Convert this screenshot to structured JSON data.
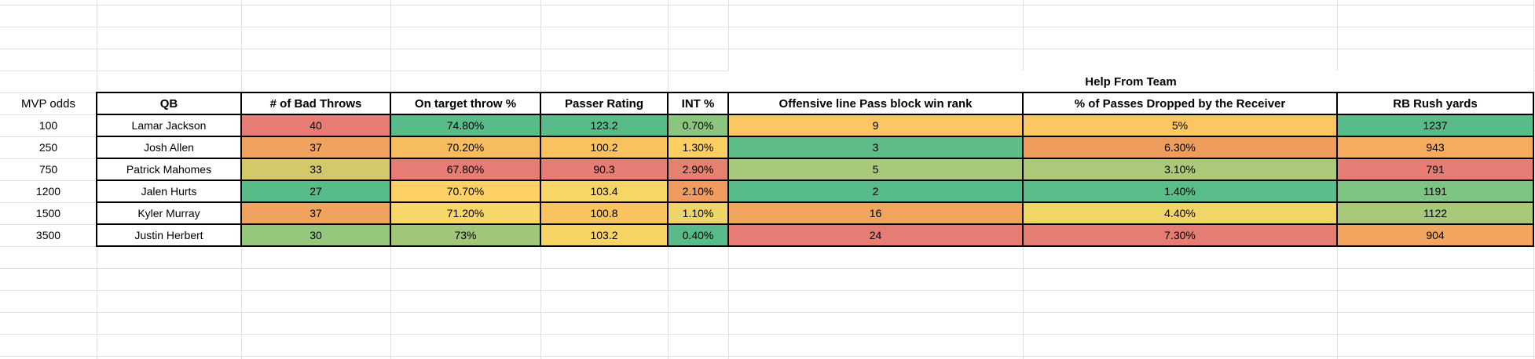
{
  "sheet": {
    "gridline_color": "#e0e0e0",
    "table_border_color": "#000000",
    "help_header": "Help From Team",
    "odds_column": {
      "header": "MVP odds",
      "values": [
        "100",
        "250",
        "750",
        "1200",
        "1500",
        "3500"
      ]
    },
    "columns": {
      "qb": "QB",
      "bad_throws": "# of Bad Throws",
      "on_target": "On target throw %",
      "passer_rating": "Passer Rating",
      "int_pct": "INT %",
      "oline_rank": "Offensive line Pass block win rank",
      "drop_pct": "% of Passes Dropped by the Receiver",
      "rb_rush": "RB Rush yards"
    },
    "rows": [
      {
        "qb": "Lamar Jackson",
        "cells": [
          {
            "v": "40",
            "bg": "#e67c73"
          },
          {
            "v": "74.80%",
            "bg": "#57bb8a"
          },
          {
            "v": "123.2",
            "bg": "#57bb8a"
          },
          {
            "v": "0.70%",
            "bg": "#8bc67e"
          },
          {
            "v": "9",
            "bg": "#fcc662"
          },
          {
            "v": "5%",
            "bg": "#fcc662"
          },
          {
            "v": "1237",
            "bg": "#57bb8a"
          }
        ]
      },
      {
        "qb": "Josh Allen",
        "cells": [
          {
            "v": "37",
            "bg": "#f0a35e"
          },
          {
            "v": "70.20%",
            "bg": "#f7bc5e"
          },
          {
            "v": "100.2",
            "bg": "#f9c25f"
          },
          {
            "v": "1.30%",
            "bg": "#fccf63"
          },
          {
            "v": "3",
            "bg": "#5ebd87"
          },
          {
            "v": "6.30%",
            "bg": "#ee9d5d"
          },
          {
            "v": "943",
            "bg": "#f5ac5d"
          }
        ]
      },
      {
        "qb": "Patrick Mahomes",
        "cells": [
          {
            "v": "33",
            "bg": "#d3c96b"
          },
          {
            "v": "67.80%",
            "bg": "#e67c73"
          },
          {
            "v": "90.3",
            "bg": "#e67c73"
          },
          {
            "v": "2.90%",
            "bg": "#e6806f"
          },
          {
            "v": "5",
            "bg": "#a9c97a"
          },
          {
            "v": "3.10%",
            "bg": "#abc979"
          },
          {
            "v": "791",
            "bg": "#e67c73"
          }
        ]
      },
      {
        "qb": "Jalen Hurts",
        "cells": [
          {
            "v": "27",
            "bg": "#57bb8a"
          },
          {
            "v": "70.70%",
            "bg": "#fdd165"
          },
          {
            "v": "103.4",
            "bg": "#f7d667"
          },
          {
            "v": "2.10%",
            "bg": "#ef9c5e"
          },
          {
            "v": "2",
            "bg": "#57bb8a"
          },
          {
            "v": "1.40%",
            "bg": "#5abc88"
          },
          {
            "v": "1191",
            "bg": "#7ec482"
          }
        ]
      },
      {
        "qb": "Kyler Murray",
        "cells": [
          {
            "v": "37",
            "bg": "#f0a35e"
          },
          {
            "v": "71.20%",
            "bg": "#f7d767"
          },
          {
            "v": "100.8",
            "bg": "#f9c35f"
          },
          {
            "v": "1.10%",
            "bg": "#edd569"
          },
          {
            "v": "16",
            "bg": "#f1a45e"
          },
          {
            "v": "4.40%",
            "bg": "#f0d567"
          },
          {
            "v": "1122",
            "bg": "#a6c878"
          }
        ]
      },
      {
        "qb": "Justin Herbert",
        "cells": [
          {
            "v": "30",
            "bg": "#95c77c"
          },
          {
            "v": "73%",
            "bg": "#a0c779"
          },
          {
            "v": "103.2",
            "bg": "#f6d466"
          },
          {
            "v": "0.40%",
            "bg": "#58bb89"
          },
          {
            "v": "24",
            "bg": "#e67c73"
          },
          {
            "v": "7.30%",
            "bg": "#e67d72"
          },
          {
            "v": "904",
            "bg": "#f2a55f"
          }
        ]
      }
    ]
  }
}
